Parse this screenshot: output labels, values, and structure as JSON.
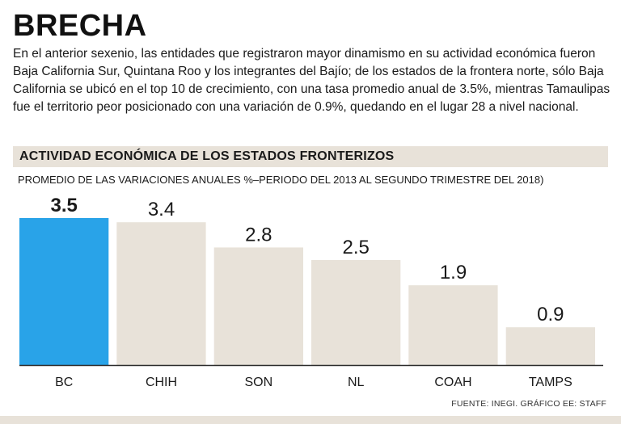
{
  "headline": "BRECHA",
  "intro": "En el anterior sexenio, las entidades que registraron mayor dinamismo en su  actividad económica fueron Baja California Sur, Quintana Roo y los integrantes del Bajío; de los estados de la frontera norte, sólo Baja California se ubicó en el top 10 de crecimiento, con una tasa promedio anual de 3.5%, mientras Tamaulipas fue el territorio peor posicionado con una variación de 0.9%, quedando en el lugar 28 a nivel nacional.",
  "source": "FUENTE: INEGI. GRÁFICO EE: STAFF",
  "colors": {
    "highlight": "#29a3e8",
    "bar": "#e8e2d9",
    "band": "#e8e2d9"
  },
  "chart_data": {
    "type": "bar",
    "title": "ACTIVIDAD ECONÓMICA DE LOS ESTADOS FRONTERIZOS",
    "subtitle": "PROMEDIO DE LAS VARIACIONES ANUALES %–PERIODO DEL 2013 AL SEGUNDO TRIMESTRE DEL 2018)",
    "categories": [
      "BC",
      "CHIH",
      "SON",
      "NL",
      "COAH",
      "TAMPS"
    ],
    "values": [
      3.5,
      3.4,
      2.8,
      2.5,
      1.9,
      0.9
    ],
    "value_labels": [
      "3.5",
      "3.4",
      "2.8",
      "2.5",
      "1.9",
      "0.9"
    ],
    "highlight_index": 0,
    "xlabel": "",
    "ylabel": "",
    "ylim": [
      0,
      3.5
    ],
    "grid": false
  }
}
